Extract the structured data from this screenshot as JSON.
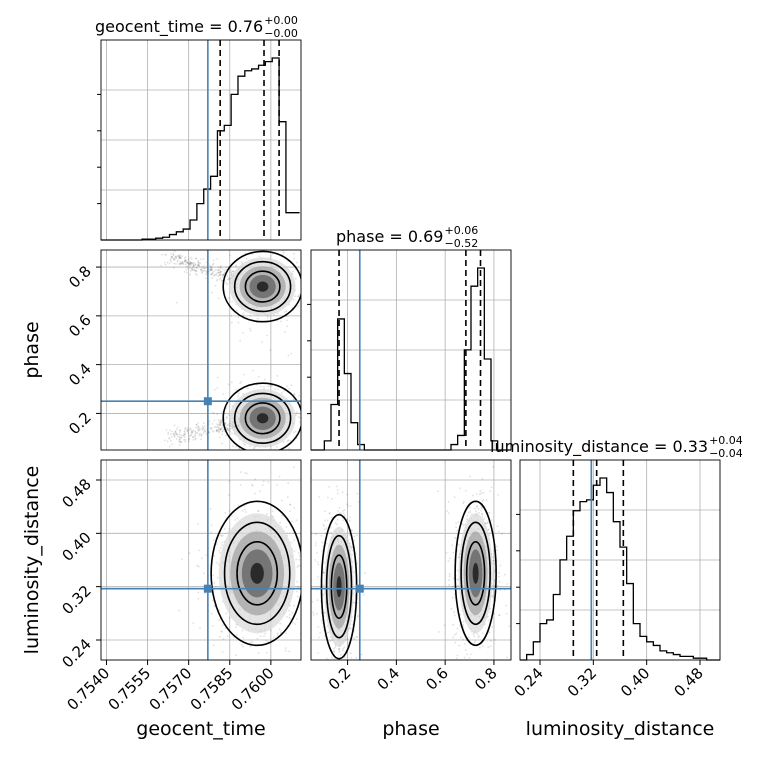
{
  "colors": {
    "truth": "#4682b4",
    "hist": "#000000",
    "grid": "#b0b0b0",
    "scatter": "#000000",
    "density_dark": "#2a2a2a",
    "density_light": "#d9d9d9"
  },
  "chart_data": {
    "type": "corner",
    "parameters": [
      "geocent_time",
      "phase",
      "luminosity_distance"
    ],
    "titles": [
      {
        "param": "geocent_time",
        "main": "geocent_time = 0.76",
        "sup": "+0.00",
        "sub": "−0.00"
      },
      {
        "param": "phase",
        "main": "phase = 0.69",
        "sup": "+0.06",
        "sub": "−0.52"
      },
      {
        "param": "luminosity_distance",
        "main": "luminosity_distance = 0.33",
        "sup": "+0.04",
        "sub": "−0.04"
      }
    ],
    "truths": {
      "geocent_time": 0.7577,
      "phase": 0.25,
      "luminosity_distance": 0.317
    },
    "quantiles": {
      "geocent_time": [
        0.75815,
        0.75975,
        0.7603
      ],
      "phase": [
        0.165,
        0.685,
        0.745
      ],
      "luminosity_distance": [
        0.29,
        0.325,
        0.365
      ]
    },
    "ranges": {
      "geocent_time": [
        0.7538,
        0.7611
      ],
      "phase": [
        0.05,
        0.87
      ],
      "luminosity_distance": [
        0.21,
        0.51
      ]
    },
    "ticks": {
      "geocent_time": {
        "values": [
          0.754,
          0.7555,
          0.757,
          0.7585,
          0.76
        ],
        "labels": [
          "0.7540",
          "0.7555",
          "0.7570",
          "0.7585",
          "0.7600"
        ]
      },
      "phase": {
        "values": [
          0.2,
          0.4,
          0.6,
          0.8
        ],
        "labels": [
          "0.2",
          "0.4",
          "0.6",
          "0.8"
        ]
      },
      "luminosity_distance": {
        "values": [
          0.24,
          0.32,
          0.4,
          0.48
        ],
        "labels": [
          "0.24",
          "0.32",
          "0.40",
          "0.48"
        ]
      }
    },
    "histograms": {
      "geocent_time": {
        "bin_edges": [
          0.7538,
          0.75405,
          0.7543,
          0.75455,
          0.7548,
          0.75505,
          0.7553,
          0.75555,
          0.7558,
          0.75605,
          0.7563,
          0.75655,
          0.7568,
          0.75705,
          0.7573,
          0.75755,
          0.7578,
          0.75805,
          0.7583,
          0.75855,
          0.7588,
          0.75905,
          0.7593,
          0.75955,
          0.7598,
          0.76005,
          0.7603,
          0.76055,
          0.7608,
          0.76105
        ],
        "counts": [
          0,
          0,
          0,
          0,
          0,
          0,
          0.5,
          0.5,
          1,
          1.5,
          3,
          4.5,
          6,
          11,
          20,
          28,
          35,
          60,
          63,
          80,
          90,
          93,
          94,
          96,
          98,
          100,
          65,
          15,
          15
        ]
      },
      "phase": {
        "bin_edges": [
          0.05,
          0.0773,
          0.1047,
          0.132,
          0.1593,
          0.1867,
          0.214,
          0.2413,
          0.2687,
          0.296,
          0.3233,
          0.3507,
          0.378,
          0.4053,
          0.4327,
          0.46,
          0.4873,
          0.5147,
          0.542,
          0.5693,
          0.5967,
          0.624,
          0.6513,
          0.6787,
          0.706,
          0.7333,
          0.7607,
          0.788,
          0.8153,
          0.8427,
          0.87
        ],
        "counts": [
          0,
          0,
          5,
          25,
          72,
          42,
          15,
          3,
          0,
          0,
          0,
          0,
          0,
          0,
          0,
          0,
          0,
          0,
          0,
          0,
          0,
          3,
          8,
          55,
          90,
          100,
          50,
          5,
          0,
          0
        ]
      },
      "luminosity_distance": {
        "bin_edges": [
          0.21,
          0.22,
          0.23,
          0.24,
          0.25,
          0.26,
          0.27,
          0.28,
          0.29,
          0.3,
          0.31,
          0.32,
          0.33,
          0.34,
          0.35,
          0.36,
          0.37,
          0.38,
          0.39,
          0.4,
          0.41,
          0.42,
          0.43,
          0.44,
          0.45,
          0.46,
          0.47,
          0.48,
          0.49,
          0.5,
          0.51
        ],
        "counts": [
          0,
          3,
          10,
          20,
          22,
          36,
          55,
          68,
          82,
          87,
          88,
          96,
          100,
          92,
          76,
          62,
          42,
          20,
          13,
          10,
          8,
          5,
          4,
          3,
          2,
          2,
          1,
          1,
          0,
          0
        ]
      }
    },
    "density_modes": {
      "geocent_time_vs_phase": [
        {
          "x": 0.7597,
          "y": 0.72,
          "sx": 0.0006,
          "sy": 0.06,
          "tail_to_x": 0.7563,
          "tail_to_y": 0.84
        },
        {
          "x": 0.7597,
          "y": 0.18,
          "sx": 0.0006,
          "sy": 0.06,
          "tail_to_x": 0.7563,
          "tail_to_y": 0.1
        }
      ],
      "geocent_time_vs_luminosity_distance": [
        {
          "x": 0.7595,
          "y": 0.34,
          "sx": 0.0007,
          "sy": 0.045
        }
      ],
      "phase_vs_luminosity_distance": [
        {
          "x": 0.165,
          "y": 0.32,
          "sx": 0.03,
          "sy": 0.045
        },
        {
          "x": 0.725,
          "y": 0.34,
          "sx": 0.035,
          "sy": 0.045
        }
      ]
    }
  }
}
